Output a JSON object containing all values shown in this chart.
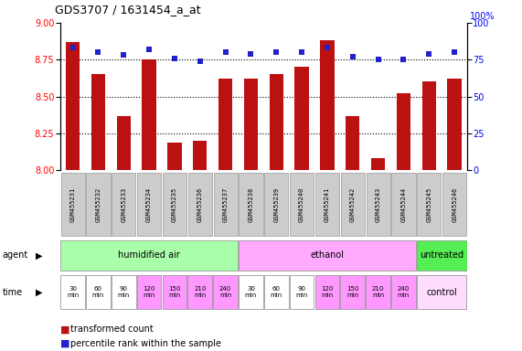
{
  "title": "GDS3707 / 1631454_a_at",
  "samples": [
    "GSM455231",
    "GSM455232",
    "GSM455233",
    "GSM455234",
    "GSM455235",
    "GSM455236",
    "GSM455237",
    "GSM455238",
    "GSM455239",
    "GSM455240",
    "GSM455241",
    "GSM455242",
    "GSM455243",
    "GSM455244",
    "GSM455245",
    "GSM455246"
  ],
  "bar_values": [
    8.87,
    8.65,
    8.37,
    8.75,
    8.19,
    8.2,
    8.62,
    8.62,
    8.65,
    8.7,
    8.88,
    8.37,
    8.08,
    8.52,
    8.6,
    8.62
  ],
  "dot_values": [
    83,
    80,
    78,
    82,
    76,
    74,
    80,
    79,
    80,
    80,
    83,
    77,
    75,
    75,
    79,
    80
  ],
  "ylim_left": [
    8.0,
    9.0
  ],
  "ylim_right": [
    0,
    100
  ],
  "yticks_left": [
    8.0,
    8.25,
    8.5,
    8.75,
    9.0
  ],
  "yticks_right": [
    0,
    25,
    50,
    75,
    100
  ],
  "hlines": [
    8.25,
    8.5,
    8.75
  ],
  "agent_groups": [
    {
      "label": "humidified air",
      "start": 0,
      "end": 7,
      "color": "#aaffaa"
    },
    {
      "label": "ethanol",
      "start": 7,
      "end": 14,
      "color": "#ffaaff"
    },
    {
      "label": "untreated",
      "start": 14,
      "end": 16,
      "color": "#55ee55"
    }
  ],
  "time_labels": [
    "30\nmin",
    "60\nmin",
    "90\nmin",
    "120\nmin",
    "150\nmin",
    "210\nmin",
    "240\nmin",
    "30\nmin",
    "60\nmin",
    "90\nmin",
    "120\nmin",
    "150\nmin",
    "210\nmin",
    "240\nmin"
  ],
  "time_colors_white": [
    0,
    1,
    2,
    7,
    8,
    9
  ],
  "time_colors_pink": [
    3,
    4,
    5,
    6,
    10,
    11,
    12,
    13
  ],
  "bar_color": "#bb1111",
  "dot_color": "#2222cc",
  "sample_box_color": "#cccccc",
  "sample_box_edge": "#999999"
}
